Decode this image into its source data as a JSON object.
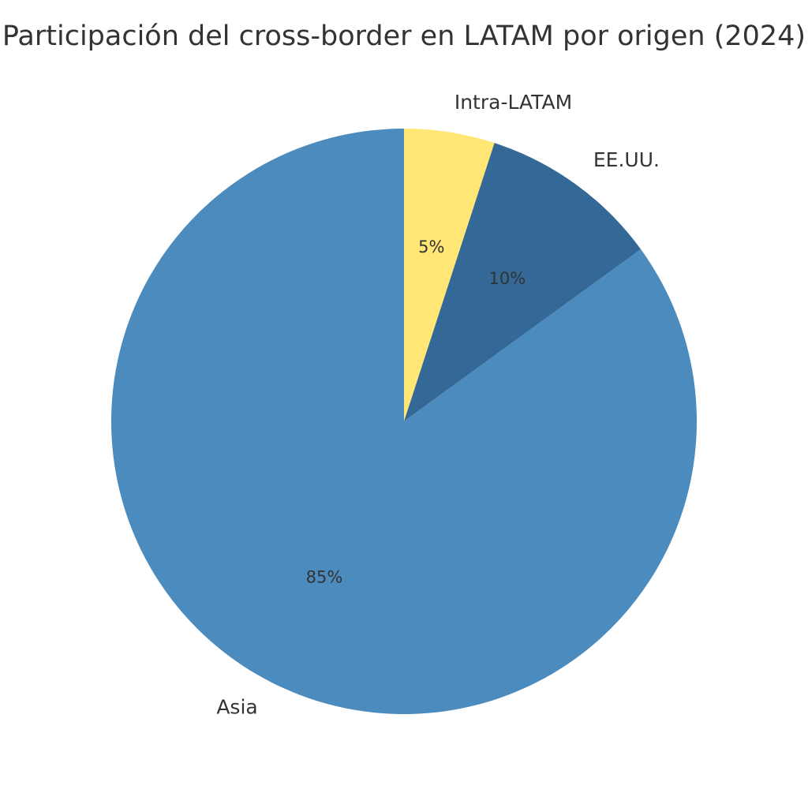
{
  "chart_data": {
    "type": "pie",
    "title": "Participación del cross-border en LATAM por origen (2024)",
    "start_angle_deg": 90,
    "direction": "clockwise",
    "slices": [
      {
        "label": "Intra-LATAM",
        "value": 5,
        "pct_label": "5%",
        "color": "#FFE675"
      },
      {
        "label": "EE.UU.",
        "value": 10,
        "pct_label": "10%",
        "color": "#336897"
      },
      {
        "label": "Asia",
        "value": 85,
        "pct_label": "85%",
        "color": "#4C8BBE"
      }
    ]
  }
}
